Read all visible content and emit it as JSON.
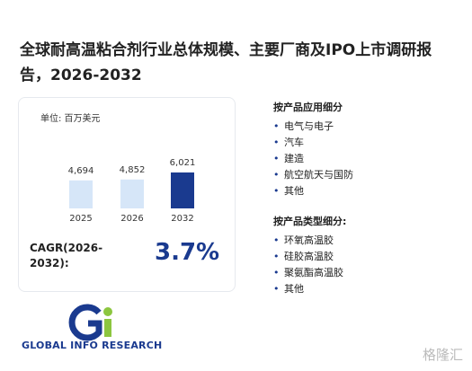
{
  "title": "全球耐高温粘合剂行业总体规模、主要厂商及IPO上市调研报告，2026-2032",
  "chart_data": {
    "type": "bar",
    "unit": "单位: 百万美元",
    "categories": [
      "2025",
      "2026",
      "2032"
    ],
    "values": [
      4694,
      4852,
      6021
    ],
    "value_labels": [
      "4,694",
      "4,852",
      "6,021"
    ],
    "colors": [
      "#d6e6f8",
      "#d6e6f8",
      "#1a3a8f"
    ]
  },
  "cagr": {
    "label": "CAGR(2026-2032):",
    "value": 3.7,
    "value_label": "3.7%"
  },
  "sections": [
    {
      "heading": "按产品应用细分",
      "items": [
        "电气与电子",
        "汽车",
        "建造",
        "航空航天与国防",
        "其他"
      ]
    },
    {
      "heading": "按产品类型细分:",
      "items": [
        "环氧高温胶",
        "硅胶高温胶",
        "聚氨酯高温胶",
        "其他"
      ]
    }
  ],
  "logo": "GLOBAL INFO RESEARCH",
  "watermark": "格隆汇"
}
